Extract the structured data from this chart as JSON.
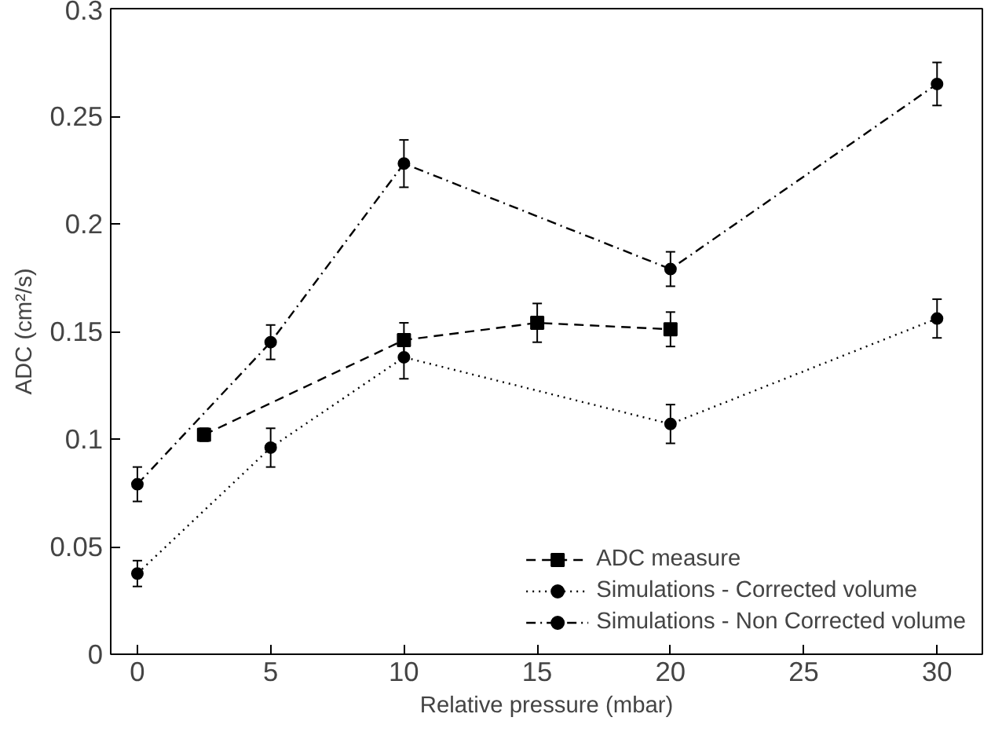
{
  "chart_data": {
    "type": "line",
    "xlabel": "Relative pressure (mbar)",
    "ylabel": "ADC (cm²/s)",
    "xlim": [
      -1,
      31.7
    ],
    "xticks": [
      0,
      5,
      10,
      15,
      20,
      25,
      30
    ],
    "ylim": [
      0,
      0.3
    ],
    "yticks": [
      0,
      0.05,
      0.1,
      0.15,
      0.2,
      0.25,
      0.3
    ],
    "grid": false,
    "legend": "bottom right",
    "series": [
      {
        "name": "ADC measure",
        "color": "#000000",
        "marker": "square",
        "line_style": "dashed",
        "x": [
          2.5,
          10,
          15,
          20
        ],
        "values": [
          0.102,
          0.146,
          0.154,
          0.151
        ],
        "errors": [
          0.003,
          0.008,
          0.009,
          0.008
        ]
      },
      {
        "name": "Simulations - Corrected volume",
        "color": "#000000",
        "marker": "circle",
        "line_style": "dotted",
        "x": [
          0,
          5,
          10,
          20,
          30
        ],
        "values": [
          0.0375,
          0.096,
          0.138,
          0.107,
          0.156
        ],
        "errors": [
          0.006,
          0.009,
          0.01,
          0.009,
          0.009
        ]
      },
      {
        "name": "Simulations - Non Corrected volume",
        "color": "#000000",
        "marker": "circle",
        "line_style": "dashdot",
        "x": [
          0,
          5,
          10,
          20,
          30
        ],
        "values": [
          0.079,
          0.145,
          0.228,
          0.179,
          0.265
        ],
        "errors": [
          0.008,
          0.008,
          0.011,
          0.008,
          0.01
        ]
      }
    ]
  }
}
